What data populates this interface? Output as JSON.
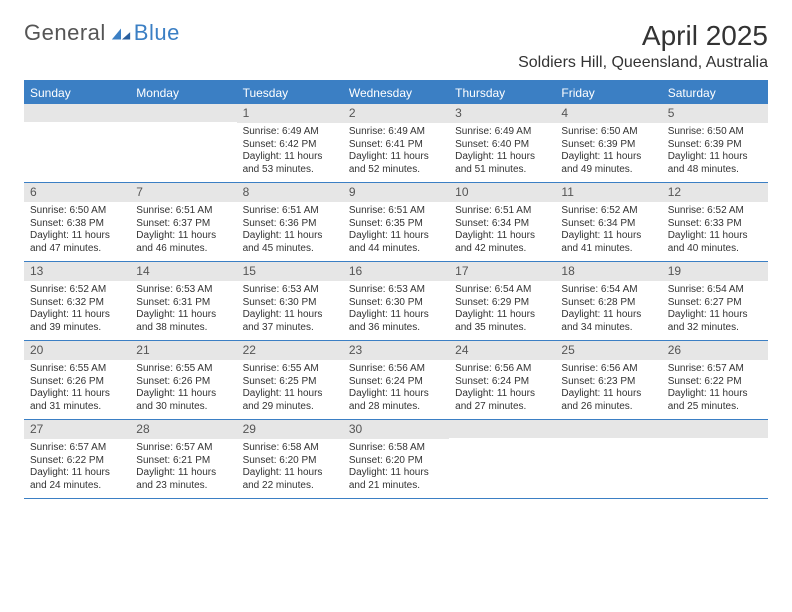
{
  "brand": {
    "part1": "General",
    "part2": "Blue"
  },
  "title": "April 2025",
  "location": "Soldiers Hill, Queensland, Australia",
  "colors": {
    "accent": "#3b7fc4",
    "header_bg": "#3b7fc4",
    "daynum_bg": "#e6e6e6",
    "text": "#333333",
    "muted": "#555555",
    "background": "#ffffff"
  },
  "weekdays": [
    "Sunday",
    "Monday",
    "Tuesday",
    "Wednesday",
    "Thursday",
    "Friday",
    "Saturday"
  ],
  "weeks": [
    [
      {
        "n": "",
        "lines": []
      },
      {
        "n": "",
        "lines": []
      },
      {
        "n": "1",
        "lines": [
          "Sunrise: 6:49 AM",
          "Sunset: 6:42 PM",
          "Daylight: 11 hours and 53 minutes."
        ]
      },
      {
        "n": "2",
        "lines": [
          "Sunrise: 6:49 AM",
          "Sunset: 6:41 PM",
          "Daylight: 11 hours and 52 minutes."
        ]
      },
      {
        "n": "3",
        "lines": [
          "Sunrise: 6:49 AM",
          "Sunset: 6:40 PM",
          "Daylight: 11 hours and 51 minutes."
        ]
      },
      {
        "n": "4",
        "lines": [
          "Sunrise: 6:50 AM",
          "Sunset: 6:39 PM",
          "Daylight: 11 hours and 49 minutes."
        ]
      },
      {
        "n": "5",
        "lines": [
          "Sunrise: 6:50 AM",
          "Sunset: 6:39 PM",
          "Daylight: 11 hours and 48 minutes."
        ]
      }
    ],
    [
      {
        "n": "6",
        "lines": [
          "Sunrise: 6:50 AM",
          "Sunset: 6:38 PM",
          "Daylight: 11 hours and 47 minutes."
        ]
      },
      {
        "n": "7",
        "lines": [
          "Sunrise: 6:51 AM",
          "Sunset: 6:37 PM",
          "Daylight: 11 hours and 46 minutes."
        ]
      },
      {
        "n": "8",
        "lines": [
          "Sunrise: 6:51 AM",
          "Sunset: 6:36 PM",
          "Daylight: 11 hours and 45 minutes."
        ]
      },
      {
        "n": "9",
        "lines": [
          "Sunrise: 6:51 AM",
          "Sunset: 6:35 PM",
          "Daylight: 11 hours and 44 minutes."
        ]
      },
      {
        "n": "10",
        "lines": [
          "Sunrise: 6:51 AM",
          "Sunset: 6:34 PM",
          "Daylight: 11 hours and 42 minutes."
        ]
      },
      {
        "n": "11",
        "lines": [
          "Sunrise: 6:52 AM",
          "Sunset: 6:34 PM",
          "Daylight: 11 hours and 41 minutes."
        ]
      },
      {
        "n": "12",
        "lines": [
          "Sunrise: 6:52 AM",
          "Sunset: 6:33 PM",
          "Daylight: 11 hours and 40 minutes."
        ]
      }
    ],
    [
      {
        "n": "13",
        "lines": [
          "Sunrise: 6:52 AM",
          "Sunset: 6:32 PM",
          "Daylight: 11 hours and 39 minutes."
        ]
      },
      {
        "n": "14",
        "lines": [
          "Sunrise: 6:53 AM",
          "Sunset: 6:31 PM",
          "Daylight: 11 hours and 38 minutes."
        ]
      },
      {
        "n": "15",
        "lines": [
          "Sunrise: 6:53 AM",
          "Sunset: 6:30 PM",
          "Daylight: 11 hours and 37 minutes."
        ]
      },
      {
        "n": "16",
        "lines": [
          "Sunrise: 6:53 AM",
          "Sunset: 6:30 PM",
          "Daylight: 11 hours and 36 minutes."
        ]
      },
      {
        "n": "17",
        "lines": [
          "Sunrise: 6:54 AM",
          "Sunset: 6:29 PM",
          "Daylight: 11 hours and 35 minutes."
        ]
      },
      {
        "n": "18",
        "lines": [
          "Sunrise: 6:54 AM",
          "Sunset: 6:28 PM",
          "Daylight: 11 hours and 34 minutes."
        ]
      },
      {
        "n": "19",
        "lines": [
          "Sunrise: 6:54 AM",
          "Sunset: 6:27 PM",
          "Daylight: 11 hours and 32 minutes."
        ]
      }
    ],
    [
      {
        "n": "20",
        "lines": [
          "Sunrise: 6:55 AM",
          "Sunset: 6:26 PM",
          "Daylight: 11 hours and 31 minutes."
        ]
      },
      {
        "n": "21",
        "lines": [
          "Sunrise: 6:55 AM",
          "Sunset: 6:26 PM",
          "Daylight: 11 hours and 30 minutes."
        ]
      },
      {
        "n": "22",
        "lines": [
          "Sunrise: 6:55 AM",
          "Sunset: 6:25 PM",
          "Daylight: 11 hours and 29 minutes."
        ]
      },
      {
        "n": "23",
        "lines": [
          "Sunrise: 6:56 AM",
          "Sunset: 6:24 PM",
          "Daylight: 11 hours and 28 minutes."
        ]
      },
      {
        "n": "24",
        "lines": [
          "Sunrise: 6:56 AM",
          "Sunset: 6:24 PM",
          "Daylight: 11 hours and 27 minutes."
        ]
      },
      {
        "n": "25",
        "lines": [
          "Sunrise: 6:56 AM",
          "Sunset: 6:23 PM",
          "Daylight: 11 hours and 26 minutes."
        ]
      },
      {
        "n": "26",
        "lines": [
          "Sunrise: 6:57 AM",
          "Sunset: 6:22 PM",
          "Daylight: 11 hours and 25 minutes."
        ]
      }
    ],
    [
      {
        "n": "27",
        "lines": [
          "Sunrise: 6:57 AM",
          "Sunset: 6:22 PM",
          "Daylight: 11 hours and 24 minutes."
        ]
      },
      {
        "n": "28",
        "lines": [
          "Sunrise: 6:57 AM",
          "Sunset: 6:21 PM",
          "Daylight: 11 hours and 23 minutes."
        ]
      },
      {
        "n": "29",
        "lines": [
          "Sunrise: 6:58 AM",
          "Sunset: 6:20 PM",
          "Daylight: 11 hours and 22 minutes."
        ]
      },
      {
        "n": "30",
        "lines": [
          "Sunrise: 6:58 AM",
          "Sunset: 6:20 PM",
          "Daylight: 11 hours and 21 minutes."
        ]
      },
      {
        "n": "",
        "lines": []
      },
      {
        "n": "",
        "lines": []
      },
      {
        "n": "",
        "lines": []
      }
    ]
  ]
}
